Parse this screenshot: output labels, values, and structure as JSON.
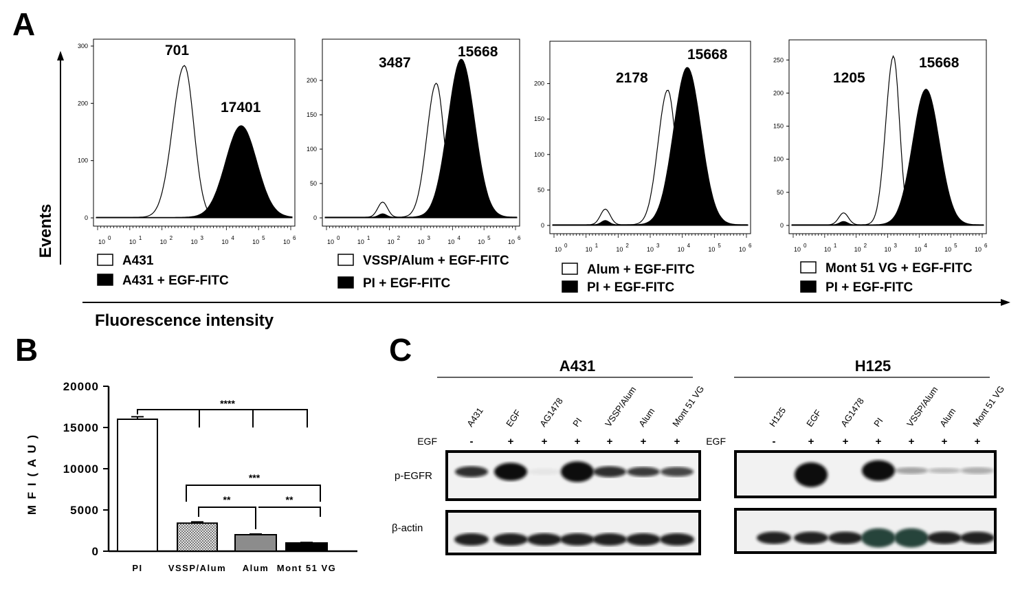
{
  "panel_a": {
    "letter": "A",
    "y_axis_label": "Events",
    "x_axis_label": "Fluorescence intensity",
    "histograms": [
      {
        "open_peak_label": "701",
        "filled_peak_label": "17401",
        "legend_open": "A431",
        "legend_filled": "A431 + EGF-FITC",
        "y_ticks": [
          "0",
          "100",
          "200",
          "300"
        ],
        "y_max": 300,
        "x_ticks": [
          "10",
          "10",
          "10",
          "10",
          "10",
          "10",
          "10"
        ],
        "x_tick_exponents": [
          "0",
          "1",
          "2",
          "3",
          "4",
          "5",
          "6"
        ]
      },
      {
        "open_peak_label": "3487",
        "filled_peak_label": "15668",
        "legend_open": "VSSP/Alum + EGF-FITC",
        "legend_filled": "PI + EGF-FITC",
        "y_ticks": [
          "0",
          "50",
          "100",
          "150",
          "200"
        ],
        "y_max": 250,
        "x_ticks": [
          "10",
          "10",
          "10",
          "10",
          "10",
          "10",
          "10"
        ],
        "x_tick_exponents": [
          "0",
          "1",
          "2",
          "3",
          "4",
          "5",
          "6"
        ]
      },
      {
        "open_peak_label": "2178",
        "filled_peak_label": "15668",
        "legend_open": "Alum + EGF-FITC",
        "legend_filled": "PI + EGF-FITC",
        "y_ticks": [
          "0",
          "50",
          "100",
          "150",
          "200"
        ],
        "y_max": 250,
        "x_ticks": [
          "10",
          "10",
          "10",
          "10",
          "10",
          "10",
          "10"
        ],
        "x_tick_exponents": [
          "0",
          "1",
          "2",
          "3",
          "4",
          "5",
          "6"
        ]
      },
      {
        "open_peak_label": "1205",
        "filled_peak_label": "15668",
        "legend_open": "Mont 51 VG + EGF-FITC",
        "legend_filled": "PI + EGF-FITC",
        "y_ticks": [
          "0",
          "50",
          "100",
          "150",
          "200",
          "250"
        ],
        "y_max": 270,
        "x_ticks": [
          "10",
          "10",
          "10",
          "10",
          "10",
          "10",
          "10"
        ],
        "x_tick_exponents": [
          "0",
          "1",
          "2",
          "3",
          "4",
          "5",
          "6"
        ]
      }
    ]
  },
  "panel_b": {
    "letter": "B",
    "significance": [
      "****",
      "***",
      "**",
      "**"
    ]
  },
  "panel_c": {
    "letter": "C",
    "egf_label": "EGF",
    "blots": [
      {
        "cell_line": "A431",
        "lanes": [
          "A431",
          "EGF",
          "AG1478",
          "PI",
          "VSSP/Alum",
          "Alum",
          "Mont 51 VG"
        ],
        "egf_signs": [
          "-",
          "+",
          "+",
          "+",
          "+",
          "+",
          "+"
        ]
      },
      {
        "cell_line": "H125",
        "lanes": [
          "H125",
          "EGF",
          "AG1478",
          "PI",
          "VSSP/Alum",
          "Alum",
          "Mont 51 VG"
        ],
        "egf_signs": [
          "-",
          "+",
          "+",
          "+",
          "+",
          "+",
          "+"
        ]
      }
    ],
    "row_labels": [
      "p-EGFR",
      "β-actin"
    ]
  },
  "chart_data": {
    "type": "bar",
    "categories": [
      "PI",
      "VSSP/Alum",
      "Alum",
      "Mont 51 VG"
    ],
    "values": [
      16000,
      3400,
      2000,
      1000
    ],
    "errors": [
      300,
      150,
      80,
      60
    ],
    "ylabel": "M F I  ( A U )",
    "ylim": [
      0,
      20000
    ],
    "y_ticks": [
      "0",
      "5000",
      "10000",
      "15000",
      "20000"
    ],
    "fills": [
      "#ffffff",
      "#cfcfcf",
      "#8c8c8c",
      "#000000"
    ]
  }
}
